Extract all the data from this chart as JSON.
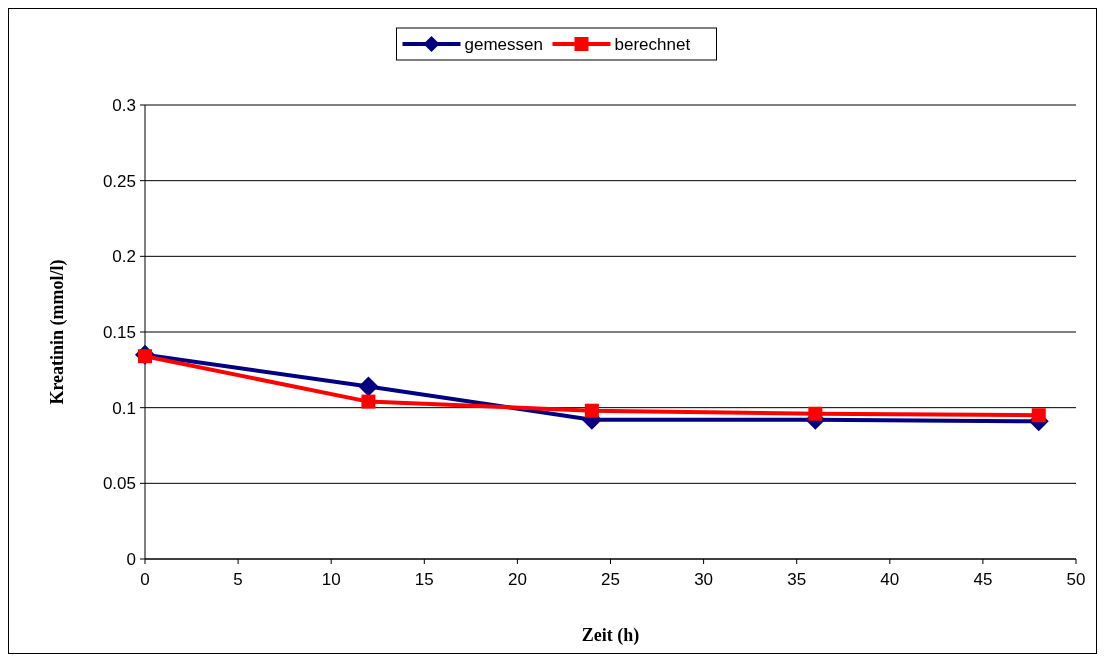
{
  "chart_data": {
    "type": "line",
    "xlabel": "Zeit (h)",
    "ylabel": "Kreatinin (mmol/l)",
    "xlim": [
      0,
      50
    ],
    "xticks": [
      0,
      5,
      10,
      15,
      20,
      25,
      30,
      35,
      40,
      45,
      50
    ],
    "ylim": [
      0,
      0.3
    ],
    "yticks": [
      0,
      0.05,
      0.1,
      0.15,
      0.2,
      0.25,
      0.3
    ],
    "grid": "y",
    "legend": "top",
    "series": [
      {
        "name": "gemessen",
        "color": "#000080",
        "marker": "diamond",
        "x": [
          0,
          12,
          24,
          36,
          48
        ],
        "values": [
          0.135,
          0.114,
          0.092,
          0.092,
          0.091
        ]
      },
      {
        "name": "berechnet",
        "color": "#ff0000",
        "marker": "square",
        "x": [
          0,
          12,
          24,
          36,
          48
        ],
        "values": [
          0.134,
          0.104,
          0.098,
          0.096,
          0.095
        ]
      }
    ]
  }
}
